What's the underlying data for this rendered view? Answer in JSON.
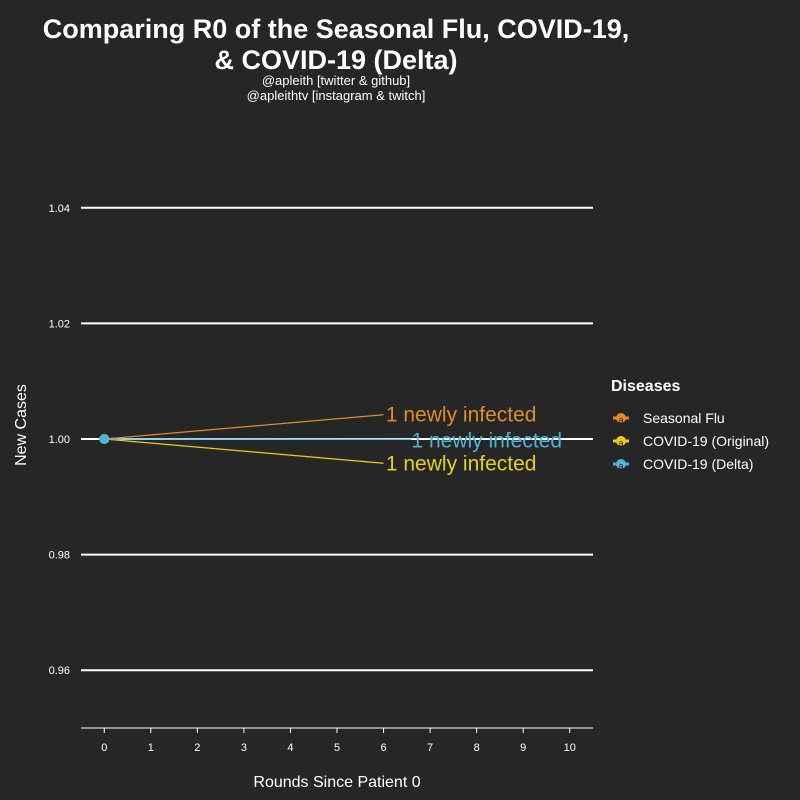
{
  "title_line1": "Comparing R0 of the Seasonal Flu, COVID-19,",
  "title_line2": "& COVID-19 (Delta)",
  "subtitle_line1": "@apleith [twitter & github]",
  "subtitle_line2": "@apleithtv [instagram & twitch]",
  "chart_data": {
    "type": "line",
    "xlabel": "Rounds Since Patient 0",
    "ylabel": "New Cases",
    "x_ticks": [
      0,
      1,
      2,
      3,
      4,
      5,
      6,
      7,
      8,
      9,
      10
    ],
    "y_ticks": [
      "0.96",
      "0.98",
      "1.00",
      "1.02",
      "1.04"
    ],
    "xlim": [
      -0.5,
      10.5
    ],
    "ylim": [
      0.95,
      1.05
    ],
    "grid": "horizontal major lines",
    "legend_title": "Diseases",
    "legend_position": "right",
    "series": [
      {
        "name": "Seasonal Flu",
        "color": "#e08a2a",
        "x": [
          0
        ],
        "y": [
          1
        ],
        "label": "1 newly infected"
      },
      {
        "name": "COVID-19 (Original)",
        "color": "#e6cf1a",
        "x": [
          0
        ],
        "y": [
          1
        ],
        "label": "1 newly infected"
      },
      {
        "name": "COVID-19 (Delta)",
        "color": "#4fb3d4",
        "x": [
          0
        ],
        "y": [
          1
        ],
        "label": "1 newly infected"
      }
    ]
  }
}
